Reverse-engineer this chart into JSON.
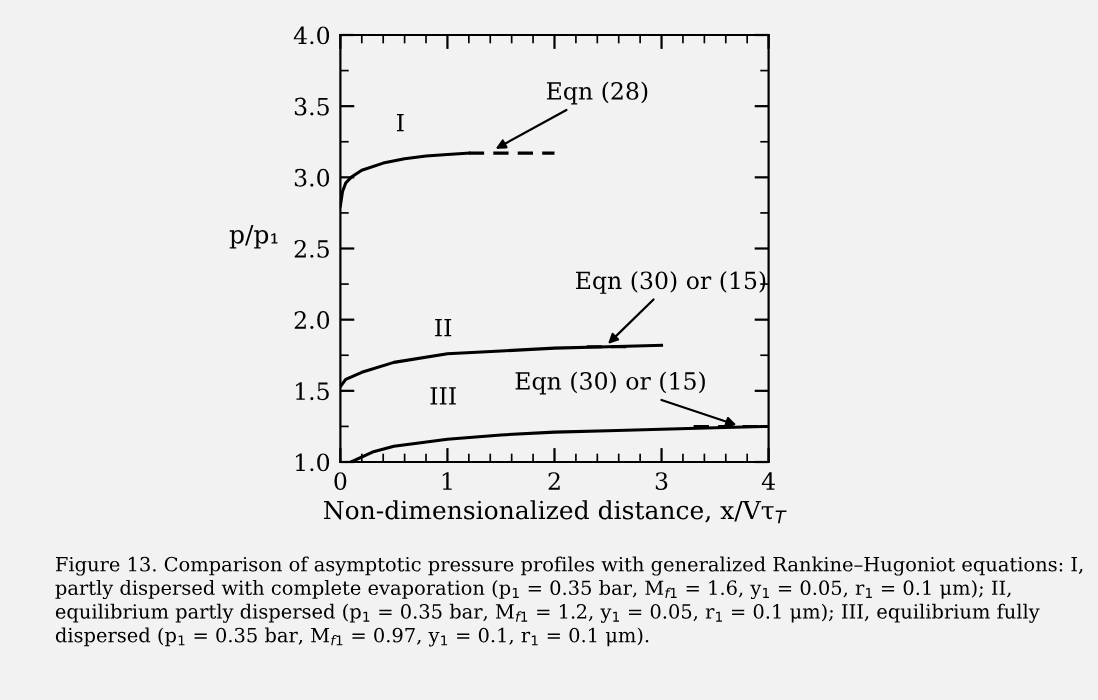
{
  "chart_data": {
    "type": "line",
    "xlabel": "Non-dimensionalized distance, x/Vτ$_{T}$",
    "ylabel": "p/p₁",
    "xlim": [
      0,
      4
    ],
    "ylim": [
      1,
      4
    ],
    "xticks": [
      0,
      1,
      2,
      3,
      4
    ],
    "yticks": [
      {
        "value": 1,
        "label": "1.0"
      },
      {
        "value": 1.5,
        "label": "1.5"
      },
      {
        "value": 2,
        "label": "2.0"
      },
      {
        "value": 2.5,
        "label": "2.5"
      },
      {
        "value": 3,
        "label": "3.0"
      },
      {
        "value": 3.5,
        "label": "3.5"
      },
      {
        "value": 4,
        "label": "4.0"
      }
    ],
    "grid": false,
    "legend": false,
    "marker": "none",
    "series": [
      {
        "color": "#000000",
        "line_style": "solid",
        "x": [
          0,
          0.02,
          0.05,
          0.1,
          0.2,
          0.4,
          0.6,
          0.8,
          1.0,
          1.2
        ],
        "values": [
          2.8,
          2.9,
          2.96,
          3.0,
          3.05,
          3.1,
          3.13,
          3.15,
          3.16,
          3.17
        ]
      },
      {
        "color": "#000000",
        "line_style": "dashed",
        "x": [
          1.2,
          2.0
        ],
        "values": [
          3.17,
          3.17
        ]
      },
      {
        "color": "#000000",
        "line_style": "solid",
        "x": [
          0,
          0.05,
          0.2,
          0.5,
          1.0,
          1.5,
          2.0,
          2.5,
          3.0
        ],
        "values": [
          1.53,
          1.58,
          1.63,
          1.7,
          1.76,
          1.78,
          1.8,
          1.81,
          1.82
        ]
      },
      {
        "color": "#000000",
        "line_style": "dashed",
        "x": [
          2.3,
          2.7
        ],
        "values": [
          1.81,
          1.81
        ]
      },
      {
        "color": "#000000",
        "line_style": "solid",
        "x": [
          0.1,
          0.3,
          0.5,
          1.0,
          1.5,
          2.0,
          2.5,
          3.0,
          3.5,
          4.0
        ],
        "values": [
          1.0,
          1.07,
          1.11,
          1.16,
          1.19,
          1.21,
          1.22,
          1.23,
          1.24,
          1.25
        ]
      },
      {
        "color": "#000000",
        "line_style": "dashed",
        "x": [
          3.3,
          4.0
        ],
        "values": [
          1.25,
          1.25
        ]
      }
    ],
    "annotations": [
      "I",
      "II",
      "III",
      {
        "text": "Eqn (28)",
        "x": 1.45,
        "y": 3.2
      },
      {
        "text": "Eqn (30) or (15)",
        "x": 2.5,
        "y": 1.83
      },
      {
        "text": "Eqn (30) or (15)",
        "x": 3.7,
        "y": 1.26
      },
      "Figure 13. Comparison of asymptotic pressure profiles with generalized Rankine–Hugoniot equations: I, partly dispersed with complete evaporation (p$_{1}$ = 0.35 bar, M$_{f1}$ = 1.6, y$_{1}$ = 0.05, r$_{1}$ = 0.1 μm); II, equilibrium partly dispersed (p$_{1}$ = 0.35 bar, M$_{f1}$ = 1.2, y$_{1}$ = 0.05, r$_{1}$ = 0.1 μm); III, equilibrium fully dispersed (p$_{1}$ = 0.35 bar, M$_{f1}$ = 0.97, y$_{1}$ = 0.1, r$_{1}$ = 0.1 μm)."
    ]
  }
}
